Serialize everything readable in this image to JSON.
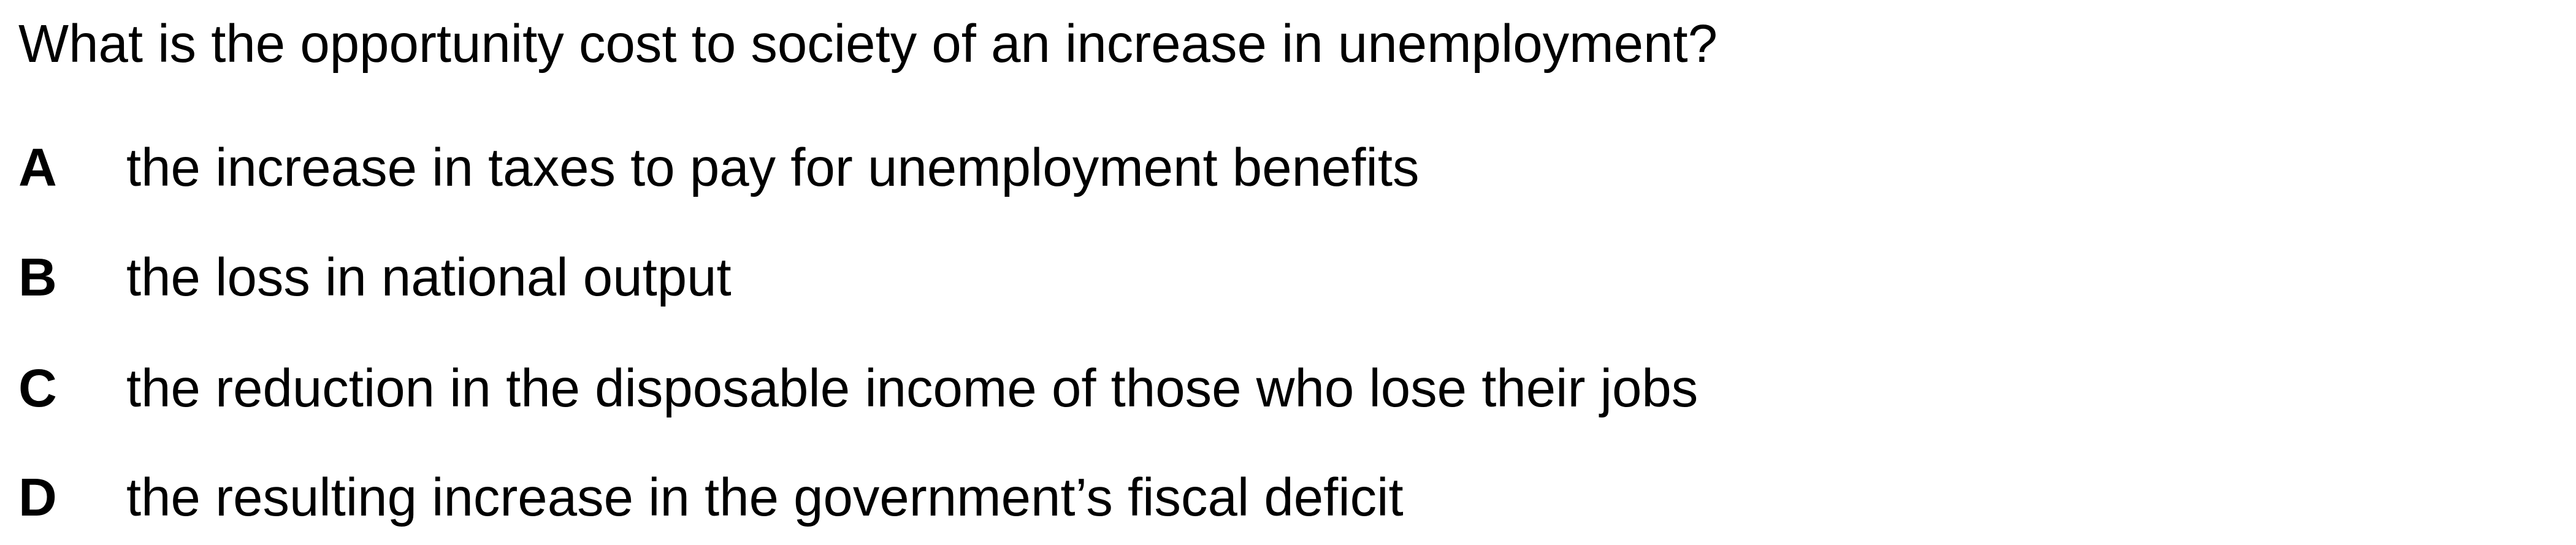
{
  "question": {
    "text": "What is the opportunity cost to society of an increase in unemployment?"
  },
  "options": [
    {
      "letter": "A",
      "text": "the increase in taxes to pay for unemployment benefits"
    },
    {
      "letter": "B",
      "text": "the loss in national output"
    },
    {
      "letter": "C",
      "text": "the reduction in the disposable income of those who lose their jobs"
    },
    {
      "letter": "D",
      "text": "the resulting increase in the government’s fiscal deficit"
    }
  ]
}
